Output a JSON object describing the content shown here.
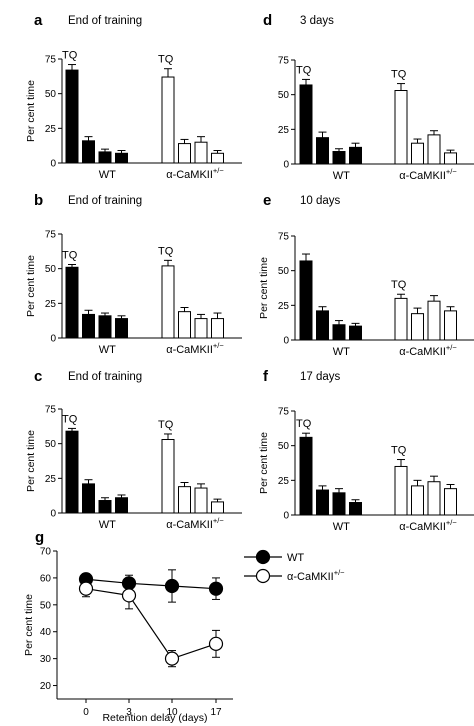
{
  "chart_data": [
    {
      "panel": "a",
      "title": "End of training",
      "type": "bar",
      "ylabel": "Per cent time",
      "ylim": [
        0,
        75
      ],
      "yticks": [
        0,
        25,
        50,
        75
      ],
      "groups": [
        {
          "name": "WT",
          "fill": "#000000",
          "values": [
            67,
            16,
            8,
            7
          ],
          "errors": [
            4,
            3,
            2,
            2
          ],
          "tq": "TQ"
        },
        {
          "name": "α-CaMKII",
          "superscript": "+/−",
          "fill": "#ffffff",
          "values": [
            62,
            14,
            15,
            7
          ],
          "errors": [
            6,
            3,
            4,
            2
          ],
          "tq": "TQ"
        }
      ]
    },
    {
      "panel": "b",
      "title": "End of training",
      "type": "bar",
      "ylabel": "Per cent time",
      "ylim": [
        0,
        75
      ],
      "yticks": [
        0,
        25,
        50,
        75
      ],
      "groups": [
        {
          "name": "WT",
          "fill": "#000000",
          "values": [
            51,
            17,
            16,
            14
          ],
          "errors": [
            2,
            3,
            2,
            2
          ],
          "tq": "TQ"
        },
        {
          "name": "α-CaMKII",
          "superscript": "+/−",
          "fill": "#ffffff",
          "values": [
            52,
            19,
            14,
            14
          ],
          "errors": [
            4,
            3,
            3,
            4
          ],
          "tq": "TQ"
        }
      ]
    },
    {
      "panel": "c",
      "title": "End of training",
      "type": "bar",
      "ylabel": "Per cent time",
      "ylim": [
        0,
        75
      ],
      "yticks": [
        0,
        25,
        50,
        75
      ],
      "groups": [
        {
          "name": "WT",
          "fill": "#000000",
          "values": [
            59,
            21,
            9,
            11
          ],
          "errors": [
            2,
            3,
            2,
            2
          ],
          "tq": "TQ"
        },
        {
          "name": "α-CaMKII",
          "superscript": "+/−",
          "fill": "#ffffff",
          "values": [
            53,
            19,
            18,
            8
          ],
          "errors": [
            4,
            3,
            3,
            2
          ],
          "tq": "TQ"
        }
      ]
    },
    {
      "panel": "d",
      "title": "3 days",
      "type": "bar",
      "ylabel": "",
      "ylim": [
        0,
        75
      ],
      "yticks": [
        0,
        25,
        50,
        75
      ],
      "groups": [
        {
          "name": "WT",
          "fill": "#000000",
          "values": [
            57,
            19,
            9,
            12
          ],
          "errors": [
            4,
            4,
            2,
            3
          ],
          "tq": "TQ"
        },
        {
          "name": "α-CaMKII",
          "superscript": "+/−",
          "fill": "#ffffff",
          "values": [
            53,
            15,
            21,
            8
          ],
          "errors": [
            5,
            3,
            3,
            2
          ],
          "tq": "TQ"
        }
      ]
    },
    {
      "panel": "e",
      "title": "10 days",
      "type": "bar",
      "ylabel": "Per cent time",
      "ylim": [
        0,
        75
      ],
      "yticks": [
        0,
        25,
        50,
        75
      ],
      "groups": [
        {
          "name": "WT",
          "fill": "#000000",
          "values": [
            57,
            21,
            11,
            10
          ],
          "errors": [
            5,
            3,
            3,
            2
          ],
          "tq": ""
        },
        {
          "name": "α-CaMKII",
          "superscript": "+/−",
          "fill": "#ffffff",
          "values": [
            30,
            19,
            28,
            21
          ],
          "errors": [
            3,
            4,
            4,
            3
          ],
          "tq": "TQ"
        }
      ]
    },
    {
      "panel": "f",
      "title": "17 days",
      "type": "bar",
      "ylabel": "Per cent time",
      "ylim": [
        0,
        75
      ],
      "yticks": [
        0,
        25,
        50,
        75
      ],
      "groups": [
        {
          "name": "WT",
          "fill": "#000000",
          "values": [
            56,
            18,
            16,
            9
          ],
          "errors": [
            3,
            3,
            3,
            2
          ],
          "tq": "TQ"
        },
        {
          "name": "α-CaMKII",
          "superscript": "+/−",
          "fill": "#ffffff",
          "values": [
            35,
            21,
            24,
            19
          ],
          "errors": [
            5,
            4,
            4,
            3
          ],
          "tq": "TQ"
        }
      ]
    },
    {
      "panel": "g",
      "title": "",
      "type": "line",
      "ylabel": "Per cent time",
      "xlabel": "Retention delay (days)",
      "ylim": [
        15,
        70
      ],
      "yticks": [
        20,
        30,
        40,
        50,
        60,
        70
      ],
      "x": [
        0,
        3,
        10,
        17
      ],
      "xticks": [
        0,
        3,
        10,
        17
      ],
      "series": [
        {
          "name": "WT",
          "superscript": "",
          "marker": "filled",
          "values": [
            59.5,
            58,
            57,
            56
          ],
          "errors": [
            2,
            3,
            6,
            4
          ]
        },
        {
          "name": "α-CaMKII",
          "superscript": "+/−",
          "marker": "open",
          "values": [
            56,
            53.5,
            30,
            35.5
          ],
          "errors": [
            3,
            5,
            3,
            5
          ]
        }
      ]
    }
  ]
}
